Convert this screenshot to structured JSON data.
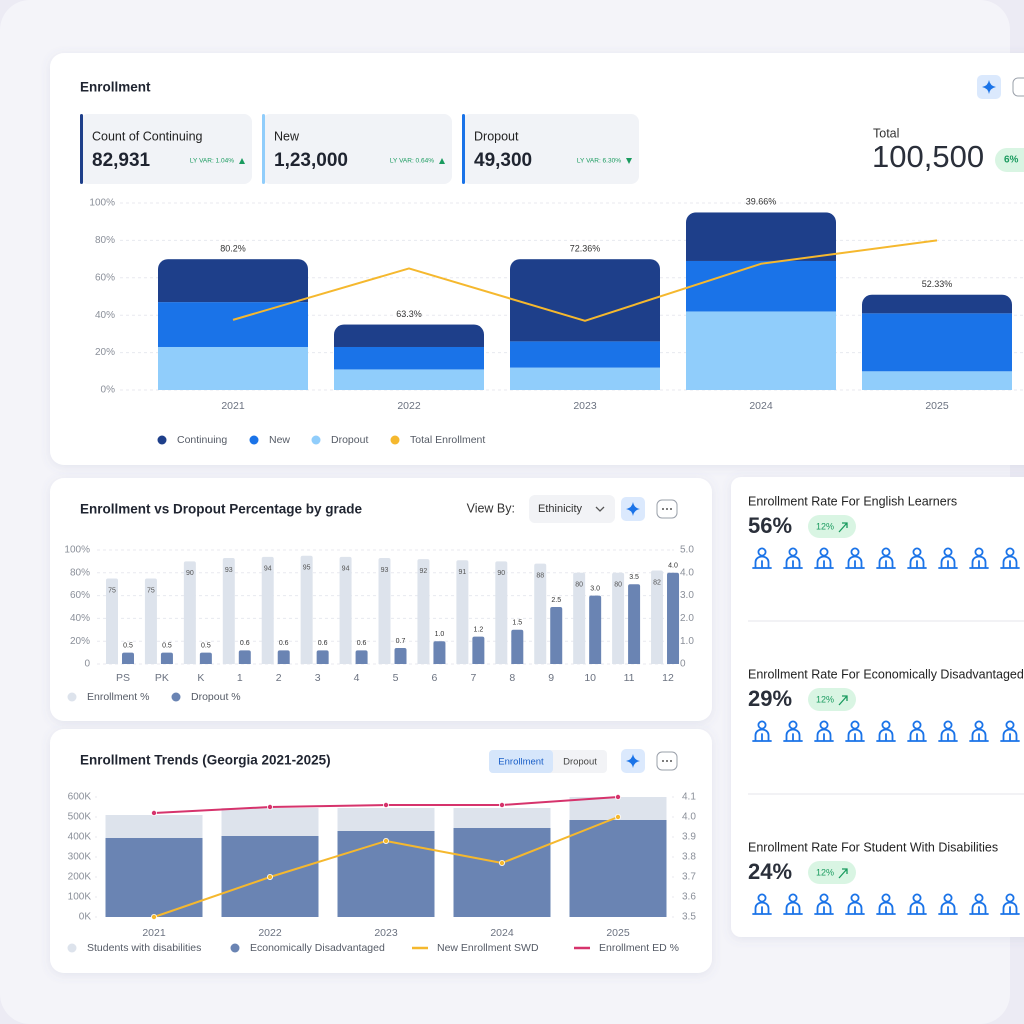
{
  "enrollment": {
    "kpis": [
      {
        "label": "Count of Continuing",
        "value": "82,931",
        "variance": "LY VAR: 1.04%",
        "trend": "up",
        "color": "#1e3f8a"
      },
      {
        "label": "New",
        "value": "1,23,000",
        "variance": "LY VAR: 0.64%",
        "trend": "up",
        "color": "#90cdfb"
      },
      {
        "label": "Dropout",
        "value": "49,300",
        "variance": "LY VAR: 6.30%",
        "trend": "down",
        "color": "#1a73e8"
      }
    ],
    "total": {
      "label": "Total",
      "value": "100,500",
      "change": "6%"
    }
  },
  "chart_data": [
    {
      "type": "bar",
      "title": "Enrollment",
      "stacked": true,
      "categories": [
        "2021",
        "2022",
        "2023",
        "2024",
        "2025"
      ],
      "series": [
        {
          "name": "Continuing",
          "color": "#1e3f8a",
          "values": [
            23,
            12,
            44,
            26,
            10
          ]
        },
        {
          "name": "New",
          "color": "#1a73e8",
          "values": [
            24,
            12,
            14,
            27,
            31
          ]
        },
        {
          "name": "Dropout",
          "color": "#90cdfb",
          "values": [
            23,
            11,
            12,
            42,
            10
          ]
        },
        {
          "name": "Total Enrollment",
          "type": "line",
          "color": "#f5b82e",
          "values": [
            37.5,
            65,
            37,
            67.5,
            80
          ]
        }
      ],
      "annotations": [
        "80.2%",
        "63.3%",
        "72.36%",
        "39.66%",
        "52.33%"
      ],
      "ylim": [
        0,
        100
      ],
      "yticks": [
        {
          "value": 0,
          "label": "0%"
        },
        {
          "value": 20,
          "label": "20%"
        },
        {
          "value": 40,
          "label": "40%"
        },
        {
          "value": 60,
          "label": "60%"
        },
        {
          "value": 80,
          "label": "80%"
        },
        {
          "value": 100,
          "label": "100%"
        }
      ],
      "grid": true,
      "markers": false
    },
    {
      "type": "bar",
      "title": "Enrollment vs Dropout Percentage by grade",
      "stacked": false,
      "categories": [
        "PS",
        "PK",
        "K",
        "1",
        "2",
        "3",
        "4",
        "5",
        "6",
        "7",
        "8",
        "9",
        "10",
        "11",
        "12"
      ],
      "series": [
        {
          "name": "Enrollment %",
          "color": "#dde3ec",
          "values": [
            75,
            75,
            90,
            93,
            94,
            95,
            94,
            93,
            92,
            91,
            90,
            88,
            80,
            80,
            82
          ]
        },
        {
          "name": "Dropout %",
          "color": "#6a84b3",
          "axis": "y2",
          "values": [
            0.5,
            0.5,
            0.5,
            0.6,
            0.6,
            0.6,
            0.6,
            0.7,
            1.0,
            1.2,
            1.5,
            2.5,
            3.0,
            3.5,
            4.0
          ],
          "value_labels": [
            "0.5",
            "0.5",
            "0.5",
            "0.6",
            "0.6",
            "0.6",
            "0.6",
            "0.7",
            "1.0",
            "1.2",
            "1.5",
            "2.5",
            "3.0",
            "3.5",
            "4.0"
          ]
        }
      ],
      "ylim": [
        0,
        100
      ],
      "yticks": [
        0,
        {
          "value": 20,
          "label": "20%"
        },
        {
          "value": 40,
          "label": "40%"
        },
        {
          "value": 60,
          "label": "60%"
        },
        {
          "value": 80,
          "label": "80%"
        },
        {
          "value": 100,
          "label": "100%"
        }
      ],
      "y2lim": [
        0,
        5
      ],
      "y2ticks": [
        0,
        {
          "value": 1,
          "label": "1.0"
        },
        {
          "value": 2,
          "label": "2.0"
        },
        {
          "value": 3,
          "label": "3.0"
        },
        {
          "value": 4,
          "label": "4.0"
        },
        {
          "value": 5,
          "label": "5.0"
        }
      ],
      "grid": true,
      "markers": false
    },
    {
      "type": "bar",
      "title": "Enrollment Trends (Georgia 2021-2025)",
      "stacked": true,
      "categories": [
        "2021",
        "2022",
        "2023",
        "2024",
        "2025"
      ],
      "series": [
        {
          "name": "Students with disabilities",
          "color": "#dde3ec",
          "values": [
            115000,
            140000,
            115000,
            100000,
            115000
          ]
        },
        {
          "name": "Economically Disadvantaged",
          "color": "#6a84b3",
          "values": [
            395000,
            405000,
            430000,
            445000,
            485000
          ]
        },
        {
          "name": "New Enrollment SWD",
          "type": "line",
          "axis": "y2",
          "color": "#f5b82e",
          "values": [
            3.5,
            3.7,
            3.88,
            3.77,
            4.0
          ]
        },
        {
          "name": "Enrollment ED %",
          "type": "line",
          "axis": "y2",
          "color": "#d6336c",
          "values": [
            4.02,
            4.05,
            4.06,
            4.06,
            4.1
          ]
        }
      ],
      "ylim": [
        0,
        600000
      ],
      "yticks": [
        {
          "value": 0,
          "label": "0K"
        },
        {
          "value": 100000,
          "label": "100K"
        },
        {
          "value": 200000,
          "label": "200K"
        },
        {
          "value": 300000,
          "label": "300K"
        },
        {
          "value": 400000,
          "label": "400K"
        },
        {
          "value": 500000,
          "label": "500K"
        },
        {
          "value": 600000,
          "label": "600K"
        }
      ],
      "y2lim": [
        3.5,
        4.1
      ],
      "y2ticks": [
        3.5,
        3.6,
        3.7,
        3.8,
        3.9,
        {
          "value": 4,
          "label": "4.0"
        },
        4.1
      ],
      "grid": false,
      "markers": true
    }
  ],
  "grade_controls": {
    "view_by": "View By:",
    "selected": "Ethinicity"
  },
  "trend_controls": {
    "tabs": [
      "Enrollment",
      "Dropout"
    ],
    "active": 0
  },
  "rates": [
    {
      "title": "Enrollment Rate For English Learners",
      "value": "56%",
      "change": "12%"
    },
    {
      "title": "Enrollment Rate For Economically Disadvantaged",
      "value": "29%",
      "change": "12%"
    },
    {
      "title": "Enrollment Rate For Student With Disabilities",
      "value": "24%",
      "change": "12%"
    }
  ]
}
